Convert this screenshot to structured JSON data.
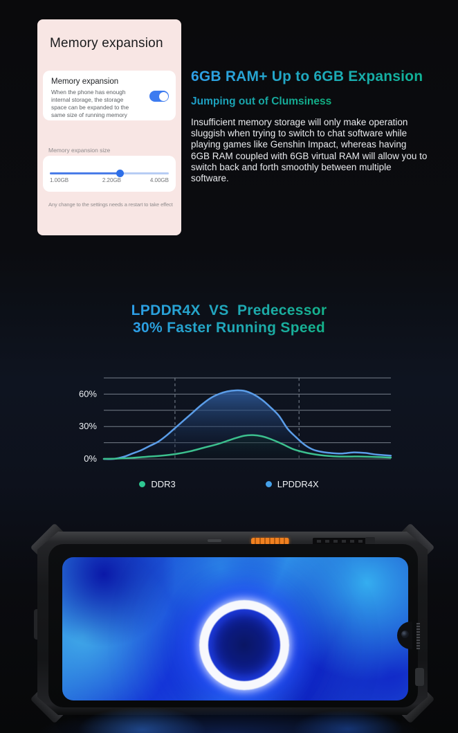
{
  "colors": {
    "background": "#0a0b0d",
    "card_bg": "#f8e6e4",
    "toggle_on": "#3d7bf0",
    "slider_fill": "#4a7ce8",
    "slider_track": "#b7cdf4",
    "headline_gradient": [
      "#2f9fe8",
      "#10b295"
    ],
    "subheadline_gradient": [
      "#1f9ec9",
      "#10b281"
    ],
    "chart_title_gradient": [
      "#2d9ee8",
      "#14b28a"
    ],
    "grid_color": "#aeb6c2",
    "accent_orange": "#e8781c"
  },
  "settings_card": {
    "title": "Memory expansion",
    "toggle_row": {
      "title": "Memory expansion",
      "description": "When the phone has enough internal storage, the storage space can be expanded to the same size of running memory",
      "state": "on"
    },
    "size_section_label": "Memory expansion size",
    "slider": {
      "labels": [
        "1.00GB",
        "2.20GB",
        "4.00GB"
      ],
      "value_percent": 59
    },
    "footnote": "Any change to the settings needs a restart to take effect"
  },
  "feature_text": {
    "headline": "6GB RAM+ Up to 6GB Expansion",
    "subheadline": "Jumping out of Clumsiness",
    "paragraph": "Insufficient memory storage will only make operation sluggish when trying to switch to chat software while playing games like Genshin Impact, whereas having 6GB RAM coupled with 6GB virtual RAM will allow you to switch back and forth smoothly between multiple software."
  },
  "chart_section": {
    "title_line1": "LPDDR4X  VS  Predecessor",
    "title_line2": "30% Faster Running Speed"
  },
  "chart_data": {
    "type": "area",
    "title": "LPDDR4X VS Predecessor - 30% Faster Running Speed",
    "xlabel": "",
    "ylabel": "",
    "ylim": [
      0,
      75
    ],
    "grid_step_percent": 15,
    "grid_on": true,
    "yticks": [
      {
        "value": 0,
        "label": "0%"
      },
      {
        "value": 30,
        "label": "30%"
      },
      {
        "value": 60,
        "label": "60%"
      }
    ],
    "dashed_vlines_x_percent": [
      24.8,
      68
    ],
    "legend_position": "bottom",
    "series": [
      {
        "name": "DDR3",
        "peak_percent": 22,
        "stroke": "#3cc08e",
        "dot": "#2ec892",
        "fill_top": "rgba(30,150,100,0.9)",
        "fill_bottom": "rgba(6,22,16,0.1)",
        "points": [
          [
            0,
            0
          ],
          [
            5,
            0.3
          ],
          [
            10,
            1
          ],
          [
            15,
            2
          ],
          [
            20,
            3
          ],
          [
            25,
            4.5
          ],
          [
            30,
            7
          ],
          [
            35,
            10.5
          ],
          [
            40,
            14
          ],
          [
            45,
            18.5
          ],
          [
            49,
            21.5
          ],
          [
            52,
            22
          ],
          [
            55,
            21
          ],
          [
            58,
            18.5
          ],
          [
            62,
            14
          ],
          [
            66,
            9
          ],
          [
            70,
            6
          ],
          [
            74,
            4
          ],
          [
            78,
            2.8
          ],
          [
            82,
            2.2
          ],
          [
            86,
            2.2
          ],
          [
            90,
            2.2
          ],
          [
            95,
            1.8
          ],
          [
            100,
            1.2
          ]
        ]
      },
      {
        "name": "LPDDR4X",
        "peak_percent": 63,
        "stroke": "#5b9de8",
        "dot": "#45a0e8",
        "fill_top": "rgba(56,110,186,0.95)",
        "fill_bottom": "rgba(10,20,42,0.15)",
        "points": [
          [
            0,
            0
          ],
          [
            3.5,
            0
          ],
          [
            7,
            2
          ],
          [
            10,
            5
          ],
          [
            13,
            8
          ],
          [
            16,
            12
          ],
          [
            19,
            16
          ],
          [
            22,
            22
          ],
          [
            25,
            29
          ],
          [
            28,
            36
          ],
          [
            31,
            43
          ],
          [
            34,
            50
          ],
          [
            37,
            56
          ],
          [
            40,
            60
          ],
          [
            43,
            62.5
          ],
          [
            46,
            63.5
          ],
          [
            49,
            63
          ],
          [
            52,
            60
          ],
          [
            55,
            55
          ],
          [
            58,
            48
          ],
          [
            61,
            40
          ],
          [
            64,
            28
          ],
          [
            67,
            20
          ],
          [
            70,
            13
          ],
          [
            73,
            8.5
          ],
          [
            76,
            6.5
          ],
          [
            79,
            5.5
          ],
          [
            83,
            5
          ],
          [
            87,
            6
          ],
          [
            91,
            5.5
          ],
          [
            95,
            4
          ],
          [
            100,
            3
          ]
        ]
      }
    ]
  }
}
